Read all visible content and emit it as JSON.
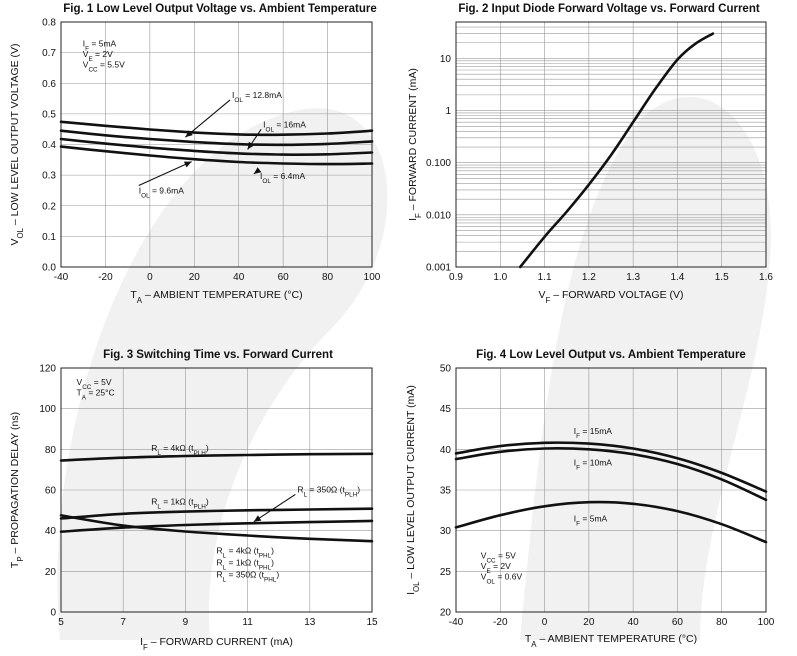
{
  "chart_data": [
    {
      "type": "line",
      "title": "Fig. 1  Low Level Output Voltage vs. Ambient Temperature",
      "xlabel": "T_A – AMBIENT TEMPERATURE (°C)",
      "ylabel": "V_OL – LOW LEVEL OUTPUT VOLTAGE (V)",
      "xlim": [
        -40,
        100
      ],
      "ylim": [
        0.0,
        0.8
      ],
      "x_ticks": [
        -40,
        -20,
        0,
        20,
        40,
        60,
        80,
        100
      ],
      "y_ticks": [
        0.0,
        0.1,
        0.2,
        0.3,
        0.4,
        0.5,
        0.6,
        0.7,
        0.8
      ],
      "grid": true,
      "conditions": [
        "I_F = 5mA",
        "V_E = 2V",
        "V_CC = 5.5V"
      ],
      "series": [
        {
          "name": "I_OL = 12.8mA",
          "x": [
            -40,
            -20,
            0,
            20,
            40,
            60,
            80,
            100
          ],
          "y": [
            0.474,
            0.461,
            0.449,
            0.439,
            0.433,
            0.432,
            0.436,
            0.445
          ]
        },
        {
          "name": "I_OL = 16mA",
          "x": [
            -40,
            -20,
            0,
            20,
            40,
            60,
            80,
            100
          ],
          "y": [
            0.445,
            0.43,
            0.418,
            0.408,
            0.401,
            0.399,
            0.402,
            0.41
          ]
        },
        {
          "name": "I_OL = 9.6mA",
          "x": [
            -40,
            -20,
            0,
            20,
            40,
            60,
            80,
            100
          ],
          "y": [
            0.418,
            0.403,
            0.39,
            0.379,
            0.371,
            0.367,
            0.368,
            0.374
          ]
        },
        {
          "name": "I_OL = 6.4mA",
          "x": [
            -40,
            -20,
            0,
            20,
            40,
            60,
            80,
            100
          ],
          "y": [
            0.393,
            0.378,
            0.364,
            0.352,
            0.343,
            0.338,
            0.336,
            0.338
          ]
        }
      ]
    },
    {
      "type": "line",
      "title": "Fig. 2 Input Diode Forward Voltage vs. Forward Current",
      "xlabel": "V_F – FORWARD VOLTAGE (V)",
      "ylabel": "I_F – FORWARD CURRENT (mA)",
      "xlim": [
        0.9,
        1.6
      ],
      "ylim": [
        0.001,
        50
      ],
      "yscale": "log",
      "x_ticks": [
        "0.9",
        "1.0",
        "1.1",
        "1.2",
        "1.3",
        "1.4",
        "1.5",
        "1.6"
      ],
      "y_ticks": [
        "0.001",
        "0.010",
        "0.100",
        "1",
        "10"
      ],
      "grid": true,
      "series": [
        {
          "name": "",
          "x": [
            1.045,
            1.1,
            1.15,
            1.2,
            1.25,
            1.3,
            1.35,
            1.4,
            1.44,
            1.48
          ],
          "y": [
            0.001,
            0.0038,
            0.0115,
            0.038,
            0.14,
            0.6,
            2.6,
            9.5,
            19,
            30
          ]
        }
      ]
    },
    {
      "type": "line",
      "title": "Fig. 3  Switching Time vs. Forward Current",
      "xlabel": "I_F – FORWARD CURRENT (mA)",
      "ylabel": "T_P – PROPAGATION DELAY (ns)",
      "xlim": [
        5,
        15
      ],
      "ylim": [
        0,
        120
      ],
      "x_ticks": [
        5,
        7,
        9,
        11,
        13,
        15
      ],
      "y_ticks": [
        0,
        20,
        40,
        60,
        80,
        100,
        120
      ],
      "grid": true,
      "conditions": [
        "V_CC = 5V",
        "T_A = 25°C"
      ],
      "series": [
        {
          "name": "R_L = 4kΩ (t_PLH)",
          "x": [
            5,
            7,
            9,
            11,
            13,
            15
          ],
          "y": [
            74.5,
            75.9,
            76.7,
            77.2,
            77.6,
            77.8
          ]
        },
        {
          "name": "R_L = 1kΩ (t_PLH)",
          "x": [
            5,
            7,
            9,
            11,
            13,
            15
          ],
          "y": [
            46,
            48.3,
            49.4,
            50.0,
            50.4,
            50.8
          ]
        },
        {
          "name": "R_L = 350Ω (t_PLH)",
          "x": [
            5,
            7,
            9,
            11,
            13,
            15
          ],
          "y": [
            39.5,
            41.5,
            42.8,
            43.6,
            44.2,
            44.8
          ]
        },
        {
          "name": "R_L = 4kΩ, 1kΩ, 350Ω (t_PHL)",
          "x": [
            5,
            7,
            9,
            11,
            13,
            15
          ],
          "y": [
            47.5,
            42.5,
            39.6,
            37.6,
            36.0,
            34.8
          ]
        }
      ]
    },
    {
      "type": "line",
      "title": "Fig. 4  Low Level Output vs. Ambient Temperature",
      "xlabel": "T_A – AMBIENT TEMPERATURE (°C)",
      "ylabel": "I_OL – LOW LEVEL OUTPUT CURRENT (mA)",
      "xlim": [
        -40,
        100
      ],
      "ylim": [
        20,
        50
      ],
      "x_ticks": [
        -40,
        -20,
        0,
        20,
        40,
        60,
        80,
        100
      ],
      "y_ticks": [
        20,
        25,
        30,
        35,
        40,
        45,
        50
      ],
      "grid": true,
      "conditions": [
        "V_CC = 5V",
        "V_E = 2V",
        "V_OL = 0.6V"
      ],
      "series": [
        {
          "name": "I_F = 15mA",
          "x": [
            -40,
            -20,
            0,
            20,
            40,
            60,
            80,
            100
          ],
          "y": [
            39.5,
            40.4,
            40.8,
            40.7,
            40.1,
            38.9,
            37.1,
            34.8
          ]
        },
        {
          "name": "I_F = 10mA",
          "x": [
            -40,
            -20,
            0,
            20,
            40,
            60,
            80,
            100
          ],
          "y": [
            38.8,
            39.7,
            40.1,
            40.0,
            39.4,
            38.2,
            36.3,
            33.8
          ]
        },
        {
          "name": "I_F = 5mA",
          "x": [
            -40,
            -20,
            0,
            20,
            40,
            60,
            80,
            100
          ],
          "y": [
            30.4,
            31.9,
            33.0,
            33.5,
            33.3,
            32.4,
            30.8,
            28.6
          ]
        }
      ]
    }
  ]
}
